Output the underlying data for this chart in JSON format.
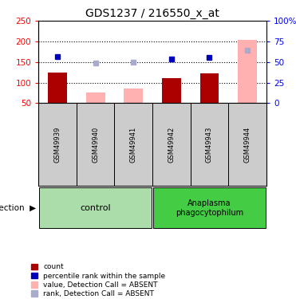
{
  "title": "GDS1237 / 216550_x_at",
  "samples": [
    "GSM49939",
    "GSM49940",
    "GSM49941",
    "GSM49942",
    "GSM49943",
    "GSM49944"
  ],
  "count_values": [
    125,
    null,
    null,
    110,
    122,
    null
  ],
  "count_color": "#aa0000",
  "rank_values": [
    163,
    null,
    null,
    158,
    162,
    null
  ],
  "rank_color": "#0000bb",
  "absent_value_values": [
    null,
    75,
    85,
    null,
    null,
    203
  ],
  "absent_value_color": "#ffb0b0",
  "absent_rank_values": [
    null,
    147,
    149,
    null,
    null,
    178
  ],
  "absent_rank_color": "#aaaacc",
  "ylim_left": [
    50,
    250
  ],
  "ylim_right": [
    0,
    100
  ],
  "yticks_left": [
    50,
    100,
    150,
    200,
    250
  ],
  "yticks_right": [
    0,
    25,
    50,
    75,
    100
  ],
  "ytick_labels_right": [
    "0",
    "25",
    "50",
    "75",
    "100%"
  ],
  "hgrid_values": [
    100,
    150,
    200
  ],
  "bar_width": 0.5,
  "ctrl_color": "#aaddaa",
  "ana_color": "#44cc44",
  "sample_bg_color": "#cccccc",
  "legend_items": [
    {
      "label": "count",
      "color": "#aa0000"
    },
    {
      "label": "percentile rank within the sample",
      "color": "#0000bb"
    },
    {
      "label": "value, Detection Call = ABSENT",
      "color": "#ffb0b0"
    },
    {
      "label": "rank, Detection Call = ABSENT",
      "color": "#aaaacc"
    }
  ]
}
